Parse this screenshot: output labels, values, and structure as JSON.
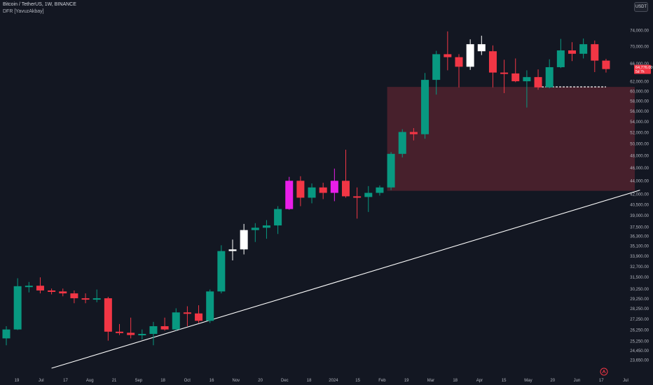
{
  "header": {
    "title": "Bitcoin / TetherUS, 1W, BINANCE",
    "indicator": "DFR [YavuzAkbay]"
  },
  "currency_button": "USDT",
  "price_label": {
    "price": "64,776.00",
    "countdown": "5d 7h"
  },
  "colors": {
    "background": "#131722",
    "up": "#089981",
    "down": "#f23645",
    "white_candle": "#ffffff",
    "magenta_candle": "#e91ee9",
    "zone": "#5a2430",
    "trendline": "#ffffff",
    "grid_text": "#b2b5be"
  },
  "chart_data": {
    "type": "candlestick",
    "y_scale": "log",
    "ylim": [
      23000,
      78000
    ],
    "y_ticks": [
      "74,000.00",
      "70,000.00",
      "66,000.00",
      "62,000.00",
      "60,000.00",
      "58,000.00",
      "56,000.00",
      "54,000.00",
      "52,000.00",
      "50,000.00",
      "48,000.00",
      "46,000.00",
      "44,000.00",
      "42,000.00",
      "40,500.00",
      "39,000.00",
      "37,500.00",
      "36,300.00",
      "35,100.00",
      "33,900.00",
      "32,700.00",
      "31,500.00",
      "30,250.00",
      "29,250.00",
      "28,250.00",
      "27,250.00",
      "26,250.00",
      "25,250.00",
      "24,450.00",
      "23,650.00"
    ],
    "x_ticks": [
      "19",
      "Jul",
      "17",
      "Aug",
      "21",
      "Sep",
      "18",
      "Oct",
      "16",
      "Nov",
      "20",
      "Dec",
      "18",
      "2024",
      "15",
      "Feb",
      "19",
      "Mar",
      "18",
      "Apr",
      "15",
      "May",
      "20",
      "Jun",
      "17",
      "Jul"
    ],
    "candles": [
      {
        "o": 25500,
        "h": 26600,
        "l": 24900,
        "c": 26300,
        "style": "up"
      },
      {
        "o": 26300,
        "h": 31400,
        "l": 26250,
        "c": 30550,
        "style": "up"
      },
      {
        "o": 30550,
        "h": 31000,
        "l": 29900,
        "c": 30600,
        "style": "up"
      },
      {
        "o": 30600,
        "h": 31500,
        "l": 29800,
        "c": 30100,
        "style": "down"
      },
      {
        "o": 30100,
        "h": 30300,
        "l": 29700,
        "c": 30000,
        "style": "down"
      },
      {
        "o": 30000,
        "h": 30300,
        "l": 29500,
        "c": 29800,
        "style": "down"
      },
      {
        "o": 29800,
        "h": 30100,
        "l": 28800,
        "c": 29300,
        "style": "down"
      },
      {
        "o": 29300,
        "h": 29800,
        "l": 28800,
        "c": 29200,
        "style": "down"
      },
      {
        "o": 29200,
        "h": 30200,
        "l": 28900,
        "c": 29300,
        "style": "up"
      },
      {
        "o": 29300,
        "h": 29450,
        "l": 25300,
        "c": 26100,
        "style": "down"
      },
      {
        "o": 26100,
        "h": 26800,
        "l": 25800,
        "c": 26000,
        "style": "down"
      },
      {
        "o": 26000,
        "h": 27400,
        "l": 25500,
        "c": 25800,
        "style": "down"
      },
      {
        "o": 25800,
        "h": 26300,
        "l": 25400,
        "c": 25900,
        "style": "up"
      },
      {
        "o": 25900,
        "h": 27000,
        "l": 24900,
        "c": 26600,
        "style": "up"
      },
      {
        "o": 26600,
        "h": 27400,
        "l": 26200,
        "c": 26300,
        "style": "down"
      },
      {
        "o": 26300,
        "h": 28300,
        "l": 26200,
        "c": 27900,
        "style": "up"
      },
      {
        "o": 27900,
        "h": 28500,
        "l": 26600,
        "c": 27800,
        "style": "down"
      },
      {
        "o": 27800,
        "h": 28600,
        "l": 26900,
        "c": 27100,
        "style": "down"
      },
      {
        "o": 27100,
        "h": 30200,
        "l": 26900,
        "c": 30000,
        "style": "up"
      },
      {
        "o": 30000,
        "h": 35200,
        "l": 29800,
        "c": 34500,
        "style": "up"
      },
      {
        "o": 34500,
        "h": 35900,
        "l": 33400,
        "c": 34700,
        "style": "white"
      },
      {
        "o": 34700,
        "h": 37900,
        "l": 34100,
        "c": 37100,
        "style": "white"
      },
      {
        "o": 37100,
        "h": 38000,
        "l": 35600,
        "c": 37400,
        "style": "up"
      },
      {
        "o": 37400,
        "h": 38400,
        "l": 36000,
        "c": 37700,
        "style": "up"
      },
      {
        "o": 37700,
        "h": 40300,
        "l": 36600,
        "c": 39900,
        "style": "up"
      },
      {
        "o": 39900,
        "h": 44600,
        "l": 39800,
        "c": 44000,
        "style": "magenta"
      },
      {
        "o": 44000,
        "h": 44700,
        "l": 40300,
        "c": 41500,
        "style": "down"
      },
      {
        "o": 41500,
        "h": 43600,
        "l": 40700,
        "c": 43000,
        "style": "up"
      },
      {
        "o": 43000,
        "h": 43700,
        "l": 41300,
        "c": 42200,
        "style": "down"
      },
      {
        "o": 42200,
        "h": 45900,
        "l": 41000,
        "c": 44000,
        "style": "magenta"
      },
      {
        "o": 44000,
        "h": 49000,
        "l": 41500,
        "c": 41700,
        "style": "down"
      },
      {
        "o": 41700,
        "h": 43000,
        "l": 38600,
        "c": 41600,
        "style": "down"
      },
      {
        "o": 41600,
        "h": 43200,
        "l": 39500,
        "c": 42200,
        "style": "up"
      },
      {
        "o": 42200,
        "h": 43300,
        "l": 41800,
        "c": 43000,
        "style": "up"
      },
      {
        "o": 43000,
        "h": 48600,
        "l": 42600,
        "c": 48300,
        "style": "up"
      },
      {
        "o": 48300,
        "h": 52600,
        "l": 47700,
        "c": 52100,
        "style": "up"
      },
      {
        "o": 52100,
        "h": 52800,
        "l": 50600,
        "c": 51700,
        "style": "down"
      },
      {
        "o": 51700,
        "h": 63900,
        "l": 50900,
        "c": 62400,
        "style": "up"
      },
      {
        "o": 62400,
        "h": 69000,
        "l": 59300,
        "c": 68200,
        "style": "up"
      },
      {
        "o": 68200,
        "h": 73800,
        "l": 64500,
        "c": 67500,
        "style": "down"
      },
      {
        "o": 67500,
        "h": 68200,
        "l": 60800,
        "c": 65300,
        "style": "down"
      },
      {
        "o": 65300,
        "h": 71800,
        "l": 64600,
        "c": 70600,
        "style": "white"
      },
      {
        "o": 70600,
        "h": 72700,
        "l": 68000,
        "c": 68900,
        "style": "white"
      },
      {
        "o": 68900,
        "h": 70300,
        "l": 60800,
        "c": 64000,
        "style": "down"
      },
      {
        "o": 64000,
        "h": 66900,
        "l": 59600,
        "c": 63800,
        "style": "down"
      },
      {
        "o": 63800,
        "h": 67200,
        "l": 61900,
        "c": 62100,
        "style": "down"
      },
      {
        "o": 62100,
        "h": 64500,
        "l": 56700,
        "c": 63000,
        "style": "up"
      },
      {
        "o": 63000,
        "h": 64700,
        "l": 60300,
        "c": 60800,
        "style": "down"
      },
      {
        "o": 60800,
        "h": 67000,
        "l": 60600,
        "c": 65200,
        "style": "up"
      },
      {
        "o": 65200,
        "h": 71900,
        "l": 65000,
        "c": 69100,
        "style": "up"
      },
      {
        "o": 69100,
        "h": 71100,
        "l": 66600,
        "c": 68300,
        "style": "down"
      },
      {
        "o": 68300,
        "h": 72000,
        "l": 67200,
        "c": 70600,
        "style": "up"
      },
      {
        "o": 70600,
        "h": 71500,
        "l": 64100,
        "c": 66700,
        "style": "down"
      },
      {
        "o": 66700,
        "h": 67100,
        "l": 64000,
        "c": 64776,
        "style": "down"
      }
    ],
    "zone": {
      "top": 60900,
      "bottom": 42500,
      "start_index": 34
    },
    "dashed_level": {
      "value": 60900,
      "start_index": 47,
      "end_index": 53
    },
    "trendline": {
      "start": {
        "index": 4,
        "value": 23000
      },
      "end": {
        "index": 56,
        "value": 42600
      }
    }
  }
}
